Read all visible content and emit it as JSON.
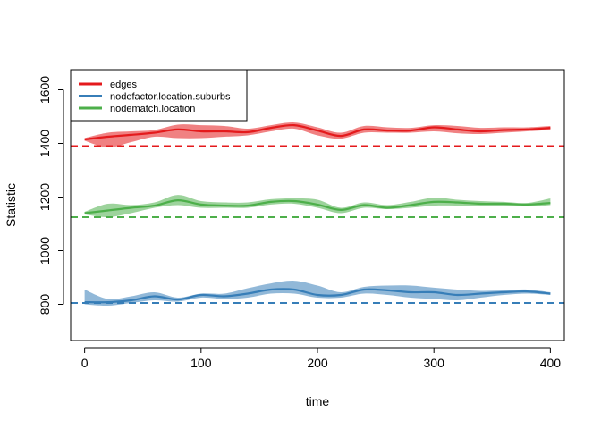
{
  "chart_data": {
    "type": "line",
    "xlabel": "time",
    "ylabel": "Statistic",
    "xlim": [
      -12,
      412
    ],
    "ylim": [
      665,
      1675
    ],
    "x_ticks": [
      0,
      100,
      200,
      300,
      400
    ],
    "y_ticks": [
      800,
      1000,
      1200,
      1400,
      1600
    ],
    "x_tick_labels": [
      "0",
      "100",
      "200",
      "300",
      "400"
    ],
    "y_tick_labels": [
      "800",
      "1000",
      "1200",
      "1400",
      "1600"
    ],
    "grid": false,
    "legend_position": "top-left",
    "series": [
      {
        "name": "edges",
        "color": "#e41a1c",
        "target": 1390,
        "x": [
          0,
          20,
          40,
          60,
          80,
          100,
          120,
          140,
          160,
          180,
          200,
          220,
          240,
          260,
          280,
          300,
          320,
          340,
          360,
          380,
          400
        ],
        "mean": [
          1415,
          1425,
          1432,
          1440,
          1452,
          1445,
          1445,
          1442,
          1458,
          1468,
          1448,
          1428,
          1452,
          1448,
          1448,
          1460,
          1452,
          1445,
          1450,
          1452,
          1458
        ],
        "lower": [
          1410,
          1385,
          1405,
          1425,
          1420,
          1420,
          1425,
          1430,
          1445,
          1455,
          1430,
          1418,
          1440,
          1440,
          1440,
          1445,
          1438,
          1435,
          1440,
          1445,
          1450
        ],
        "upper": [
          1420,
          1440,
          1445,
          1450,
          1470,
          1468,
          1465,
          1455,
          1468,
          1478,
          1460,
          1440,
          1465,
          1460,
          1458,
          1468,
          1465,
          1458,
          1460,
          1460,
          1465
        ]
      },
      {
        "name": "nodefactor.location.suburbs",
        "color": "#377eb8",
        "target": 805,
        "x": [
          0,
          20,
          40,
          60,
          80,
          100,
          120,
          140,
          160,
          180,
          200,
          220,
          240,
          260,
          280,
          300,
          320,
          340,
          360,
          380,
          400
        ],
        "mean": [
          808,
          808,
          815,
          830,
          818,
          835,
          830,
          840,
          855,
          855,
          835,
          835,
          855,
          852,
          845,
          845,
          835,
          840,
          845,
          848,
          840
        ],
        "lower": [
          800,
          795,
          805,
          815,
          810,
          825,
          820,
          825,
          840,
          840,
          825,
          825,
          840,
          835,
          825,
          820,
          815,
          825,
          835,
          840,
          835
        ],
        "upper": [
          855,
          820,
          830,
          845,
          825,
          840,
          840,
          860,
          878,
          888,
          870,
          845,
          865,
          870,
          870,
          862,
          855,
          850,
          852,
          855,
          845
        ]
      },
      {
        "name": "nodematch.location",
        "color": "#4daf4a",
        "target": 1125,
        "x": [
          0,
          20,
          40,
          60,
          80,
          100,
          120,
          140,
          160,
          180,
          200,
          220,
          240,
          260,
          280,
          300,
          320,
          340,
          360,
          380,
          400
        ],
        "mean": [
          1140,
          1150,
          1160,
          1168,
          1188,
          1172,
          1168,
          1168,
          1182,
          1185,
          1172,
          1152,
          1170,
          1160,
          1170,
          1182,
          1180,
          1175,
          1175,
          1172,
          1178
        ],
        "lower": [
          1135,
          1125,
          1140,
          1160,
          1170,
          1160,
          1160,
          1160,
          1172,
          1175,
          1160,
          1140,
          1160,
          1155,
          1160,
          1168,
          1168,
          1165,
          1168,
          1165,
          1170
        ],
        "upper": [
          1145,
          1175,
          1170,
          1180,
          1208,
          1185,
          1180,
          1180,
          1192,
          1195,
          1190,
          1160,
          1180,
          1170,
          1182,
          1198,
          1190,
          1185,
          1182,
          1178,
          1195
        ]
      }
    ]
  }
}
